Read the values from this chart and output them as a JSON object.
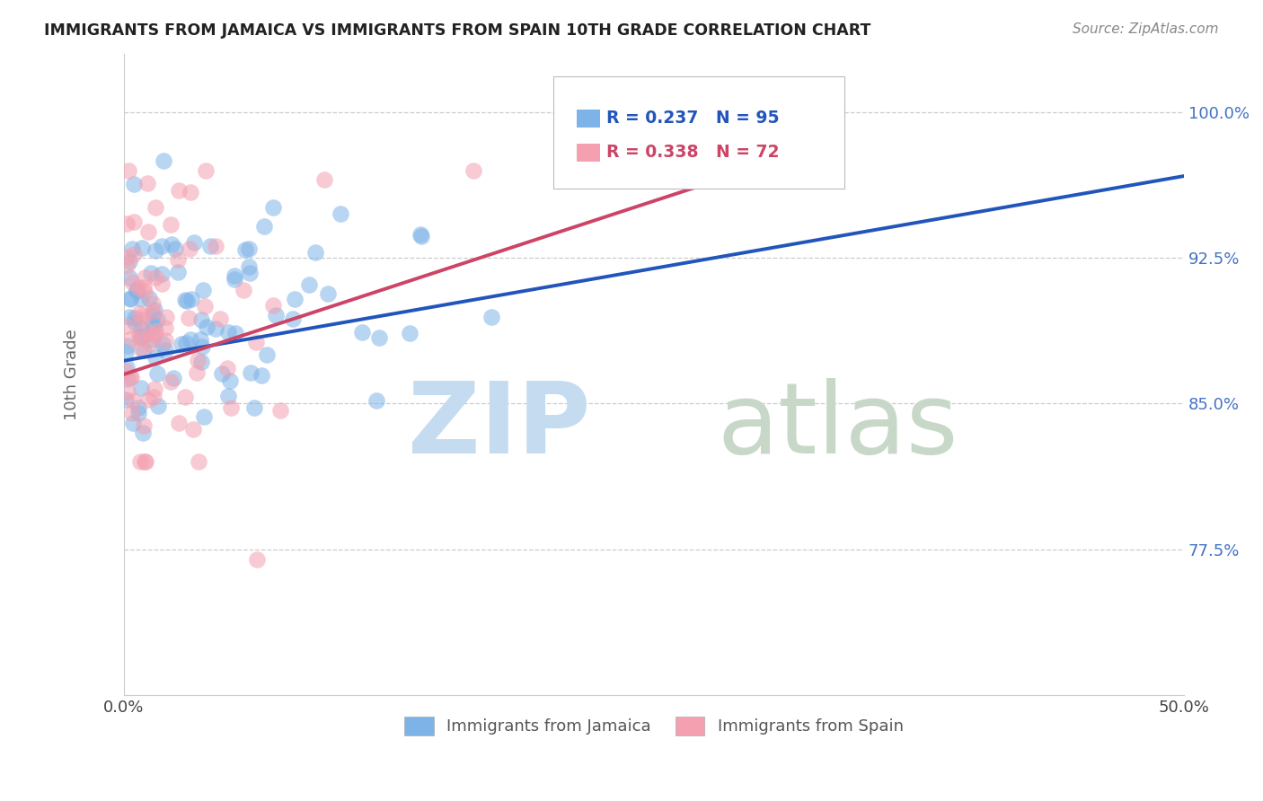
{
  "title": "IMMIGRANTS FROM JAMAICA VS IMMIGRANTS FROM SPAIN 10TH GRADE CORRELATION CHART",
  "source": "Source: ZipAtlas.com",
  "ylabel": "10th Grade",
  "xlim": [
    0.0,
    0.5
  ],
  "ylim": [
    0.7,
    1.03
  ],
  "xtick_labels": [
    "0.0%",
    "50.0%"
  ],
  "ytick_values": [
    0.775,
    0.85,
    0.925,
    1.0
  ],
  "ytick_labels": [
    "77.5%",
    "85.0%",
    "92.5%",
    "100.0%"
  ],
  "jamaica_color": "#7EB3E8",
  "spain_color": "#F4A0B0",
  "jamaica_line_color": "#2255BB",
  "spain_line_color": "#CC4466",
  "jamaica_R": 0.237,
  "jamaica_N": 95,
  "spain_R": 0.338,
  "spain_N": 72,
  "legend_label_jamaica": "Immigrants from Jamaica",
  "legend_label_spain": "Immigrants from Spain",
  "watermark_zip": "ZIP",
  "watermark_atlas": "atlas"
}
